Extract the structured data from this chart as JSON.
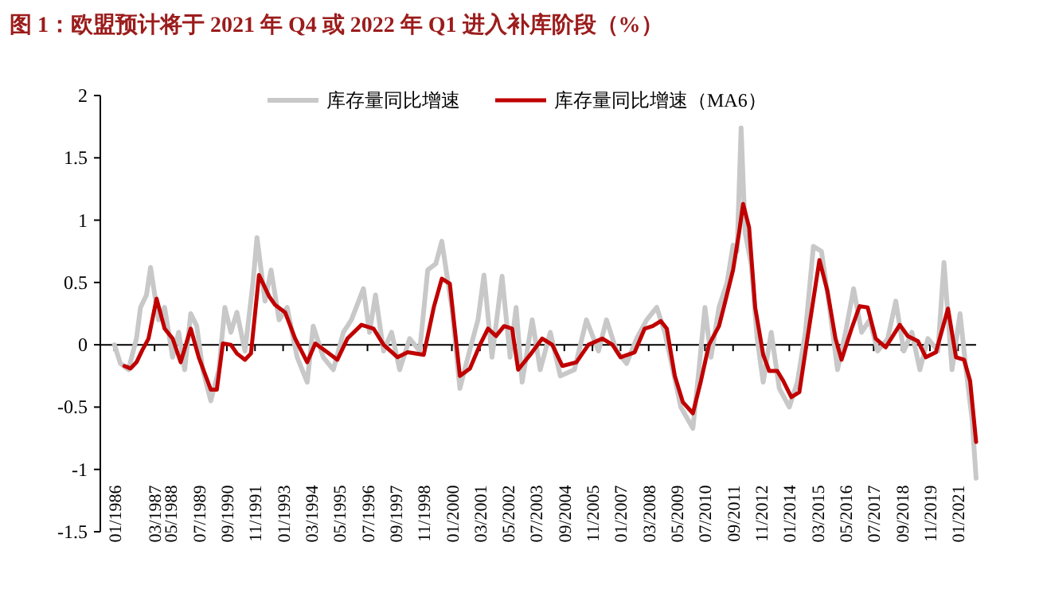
{
  "chart_data": {
    "type": "line",
    "title": "图 1：欧盟预计将于 2021 年 Q4 或 2022 年 Q1 进入补库阶段（%）",
    "ylim": [
      -1.5,
      2
    ],
    "yticks": [
      -1.5,
      -1,
      -0.5,
      0,
      0.5,
      1,
      1.5,
      2
    ],
    "xlim": [
      "1985-06",
      "2021-10"
    ],
    "xticks": [
      {
        "value": "1986-01",
        "label": "01/1986"
      },
      {
        "value": "1987-09",
        "label": "03/1987"
      },
      {
        "value": "1988-05",
        "label": "05/1988"
      },
      {
        "value": "1989-07",
        "label": "07/1989"
      },
      {
        "value": "1990-09",
        "label": "09/1990"
      },
      {
        "value": "1991-11",
        "label": "11/1991"
      },
      {
        "value": "1993-01",
        "label": "01/1993"
      },
      {
        "value": "1994-03",
        "label": "03/1994"
      },
      {
        "value": "1995-05",
        "label": "05/1995"
      },
      {
        "value": "1996-07",
        "label": "07/1996"
      },
      {
        "value": "1997-09",
        "label": "09/1997"
      },
      {
        "value": "1998-11",
        "label": "11/1998"
      },
      {
        "value": "2000-01",
        "label": "01/2000"
      },
      {
        "value": "2001-03",
        "label": "03/2001"
      },
      {
        "value": "2002-05",
        "label": "05/2002"
      },
      {
        "value": "2003-07",
        "label": "07/2003"
      },
      {
        "value": "2004-09",
        "label": "09/2004"
      },
      {
        "value": "2005-11",
        "label": "11/2005"
      },
      {
        "value": "2007-01",
        "label": "01/2007"
      },
      {
        "value": "2008-03",
        "label": "03/2008"
      },
      {
        "value": "2009-05",
        "label": "05/2009"
      },
      {
        "value": "2010-07",
        "label": "07/2010"
      },
      {
        "value": "2011-09",
        "label": "09/2011"
      },
      {
        "value": "2012-11",
        "label": "11/2012"
      },
      {
        "value": "2014-01",
        "label": "01/2014"
      },
      {
        "value": "2015-03",
        "label": "03/2015"
      },
      {
        "value": "2016-05",
        "label": "05/2016"
      },
      {
        "value": "2017-07",
        "label": "07/2017"
      },
      {
        "value": "2018-09",
        "label": "09/2018"
      },
      {
        "value": "2019-11",
        "label": "11/2019"
      },
      {
        "value": "2021-01",
        "label": "01/2021"
      }
    ],
    "ref_lines": [
      {
        "axis": "y",
        "value": 0,
        "color": "#000000",
        "line_style": "solid"
      }
    ],
    "legend": "top",
    "grid": false,
    "marker": "none",
    "line_style": "solid",
    "series": [
      {
        "name": "库存量同比增速",
        "color": "#c8c8c8",
        "x": [
          "1986-01",
          "1986-04",
          "1986-08",
          "1986-12",
          "1987-02",
          "1987-05",
          "1987-07",
          "1987-11",
          "1988-02",
          "1988-06",
          "1988-09",
          "1988-12",
          "1989-03",
          "1989-06",
          "1989-09",
          "1990-01",
          "1990-05",
          "1990-08",
          "1990-11",
          "1991-02",
          "1991-06",
          "1991-10",
          "1991-12",
          "1992-04",
          "1992-07",
          "1992-11",
          "1993-03",
          "1993-08",
          "1994-01",
          "1994-04",
          "1994-09",
          "1995-02",
          "1995-07",
          "1995-11",
          "1996-05",
          "1996-08",
          "1996-11",
          "1997-03",
          "1997-07",
          "1997-11",
          "1998-04",
          "1998-09",
          "1999-01",
          "1999-05",
          "1999-08",
          "2000-01",
          "2000-05",
          "2000-09",
          "2001-02",
          "2001-05",
          "2001-09",
          "2002-02",
          "2002-06",
          "2002-09",
          "2002-12",
          "2003-05",
          "2003-09",
          "2004-02",
          "2004-07",
          "2005-02",
          "2005-08",
          "2006-02",
          "2006-06",
          "2006-11",
          "2007-04",
          "2007-09",
          "2008-02",
          "2008-07",
          "2008-11",
          "2009-03",
          "2009-07",
          "2010-01",
          "2010-04",
          "2010-07",
          "2010-10",
          "2011-02",
          "2011-06",
          "2011-09",
          "2011-11",
          "2012-01",
          "2012-03",
          "2012-06",
          "2012-09",
          "2012-12",
          "2013-04",
          "2013-08",
          "2014-01",
          "2014-05",
          "2014-09",
          "2015-01",
          "2015-05",
          "2015-09",
          "2016-01",
          "2016-05",
          "2016-09",
          "2017-01",
          "2017-05",
          "2017-09",
          "2018-02",
          "2018-06",
          "2018-10",
          "2019-02",
          "2019-06",
          "2019-10",
          "2020-03",
          "2020-06",
          "2020-10",
          "2021-02",
          "2021-05",
          "2021-08",
          "2021-10"
        ],
        "values": [
          0.0,
          -0.15,
          -0.2,
          0.05,
          0.3,
          0.4,
          0.62,
          0.2,
          0.3,
          -0.1,
          0.1,
          -0.2,
          0.25,
          0.15,
          -0.2,
          -0.45,
          -0.2,
          0.3,
          0.1,
          0.26,
          -0.05,
          0.5,
          0.86,
          0.35,
          0.6,
          0.2,
          0.3,
          -0.1,
          -0.3,
          0.15,
          -0.1,
          -0.2,
          0.1,
          0.2,
          0.45,
          0.1,
          0.4,
          -0.05,
          0.1,
          -0.2,
          0.05,
          -0.05,
          0.6,
          0.65,
          0.83,
          0.3,
          -0.35,
          -0.1,
          0.2,
          0.56,
          -0.1,
          0.55,
          -0.1,
          0.3,
          -0.3,
          0.2,
          -0.2,
          0.1,
          -0.25,
          -0.2,
          0.2,
          -0.05,
          0.2,
          -0.05,
          -0.15,
          0.05,
          0.2,
          0.3,
          0.1,
          -0.2,
          -0.5,
          -0.67,
          -0.2,
          0.3,
          -0.1,
          0.3,
          0.5,
          0.8,
          0.75,
          1.74,
          0.9,
          0.65,
          0.05,
          -0.3,
          0.1,
          -0.35,
          -0.5,
          -0.3,
          0.1,
          0.79,
          0.75,
          0.3,
          -0.2,
          0.1,
          0.45,
          0.1,
          0.2,
          -0.05,
          0.05,
          0.35,
          -0.05,
          0.1,
          -0.2,
          0.05,
          -0.05,
          0.66,
          -0.2,
          0.25,
          -0.2,
          -0.6,
          -1.07
        ]
      },
      {
        "name": "库存量同比增速（MA6）",
        "color": "#c00000",
        "x": [
          "1986-06",
          "1986-09",
          "1986-12",
          "1987-03",
          "1987-06",
          "1987-10",
          "1988-02",
          "1988-06",
          "1988-10",
          "1989-03",
          "1989-07",
          "1990-01",
          "1990-04",
          "1990-07",
          "1990-11",
          "1991-02",
          "1991-06",
          "1991-09",
          "1992-01",
          "1992-06",
          "1992-09",
          "1993-02",
          "1993-07",
          "1994-01",
          "1994-05",
          "1994-11",
          "1995-04",
          "1995-09",
          "1996-04",
          "1996-10",
          "1997-03",
          "1997-10",
          "1998-03",
          "1998-11",
          "1999-04",
          "1999-08",
          "1999-12",
          "2000-05",
          "2000-10",
          "2001-03",
          "2001-07",
          "2001-11",
          "2002-03",
          "2002-07",
          "2002-10",
          "2003-04",
          "2003-10",
          "2004-03",
          "2004-08",
          "2005-03",
          "2005-09",
          "2006-04",
          "2006-09",
          "2007-01",
          "2007-08",
          "2008-01",
          "2008-05",
          "2008-09",
          "2008-12",
          "2009-04",
          "2009-08",
          "2010-01",
          "2010-05",
          "2010-09",
          "2011-02",
          "2011-05",
          "2011-09",
          "2011-12",
          "2012-02",
          "2012-05",
          "2012-08",
          "2012-12",
          "2013-03",
          "2013-07",
          "2013-10",
          "2014-02",
          "2014-06",
          "2014-10",
          "2015-04",
          "2015-08",
          "2015-12",
          "2016-03",
          "2016-08",
          "2016-12",
          "2017-04",
          "2017-08",
          "2018-01",
          "2018-08",
          "2018-12",
          "2019-05",
          "2019-09",
          "2020-02",
          "2020-08",
          "2020-12",
          "2021-04",
          "2021-07",
          "2021-10"
        ],
        "values": [
          -0.17,
          -0.19,
          -0.14,
          -0.04,
          0.05,
          0.37,
          0.13,
          0.05,
          -0.14,
          0.13,
          -0.1,
          -0.36,
          -0.36,
          0.01,
          0.0,
          -0.07,
          -0.12,
          -0.07,
          0.56,
          0.39,
          0.32,
          0.26,
          0.05,
          -0.14,
          0.01,
          -0.06,
          -0.12,
          0.05,
          0.16,
          0.13,
          0.0,
          -0.1,
          -0.06,
          -0.08,
          0.3,
          0.53,
          0.49,
          -0.25,
          -0.19,
          0.0,
          0.13,
          0.07,
          0.15,
          0.13,
          -0.2,
          -0.08,
          0.05,
          0.0,
          -0.17,
          -0.14,
          0.0,
          0.05,
          0.0,
          -0.1,
          -0.06,
          0.13,
          0.15,
          0.19,
          0.13,
          -0.25,
          -0.46,
          -0.55,
          -0.29,
          0.0,
          0.15,
          0.34,
          0.6,
          0.9,
          1.13,
          0.94,
          0.3,
          -0.08,
          -0.21,
          -0.21,
          -0.29,
          -0.42,
          -0.38,
          0.05,
          0.68,
          0.43,
          0.05,
          -0.12,
          0.13,
          0.31,
          0.3,
          0.05,
          -0.02,
          0.16,
          0.07,
          0.03,
          -0.1,
          -0.06,
          0.29,
          -0.1,
          -0.12,
          -0.29,
          -0.78
        ]
      }
    ]
  }
}
